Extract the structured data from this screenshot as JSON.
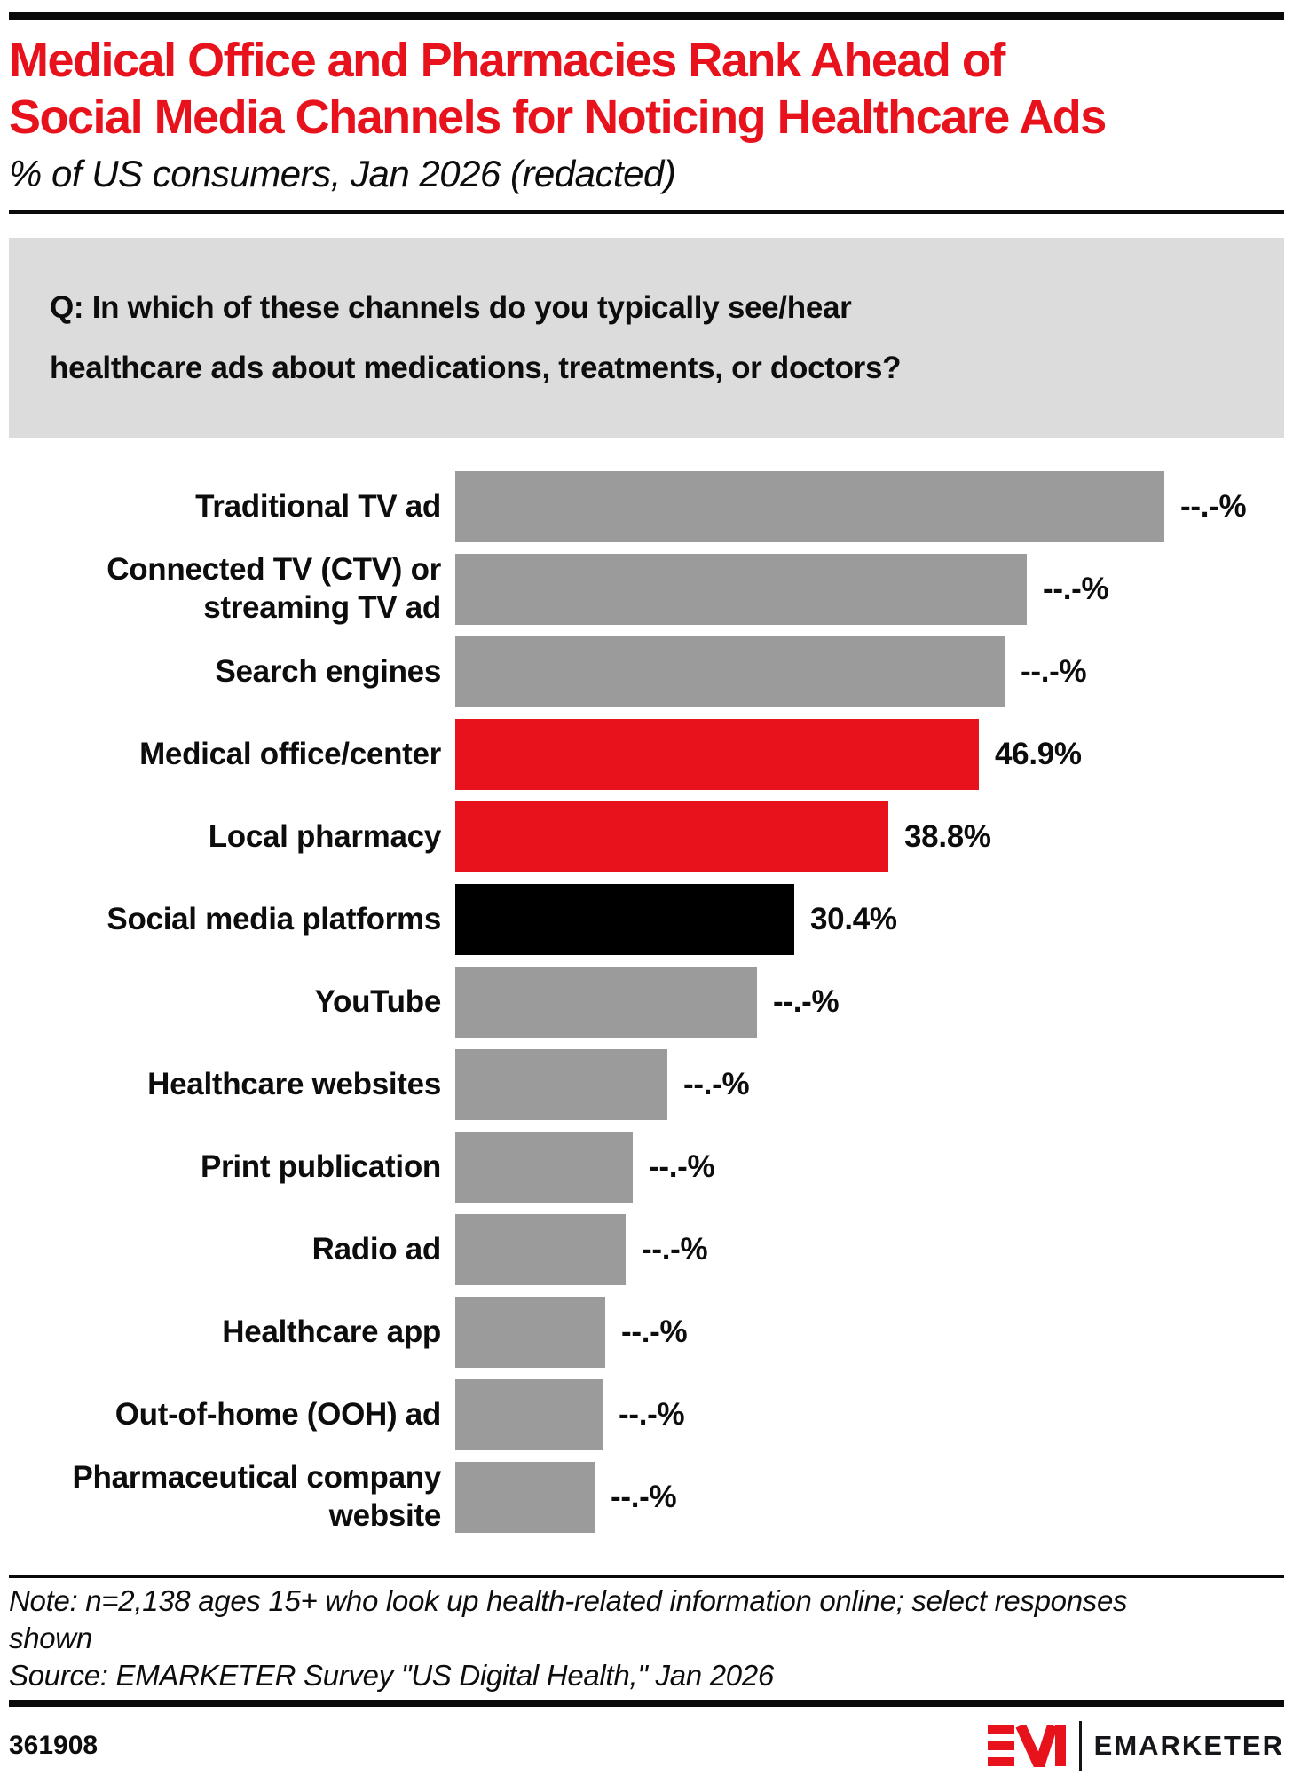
{
  "header": {
    "title_lines": [
      "Medical Office and Pharmacies Rank Ahead of",
      "Social Media Channels for Noticing Healthcare Ads"
    ],
    "subtitle": "% of US consumers, Jan 2026 (redacted)"
  },
  "question": {
    "lines": [
      "Q: In which of these channels do you typically see/hear",
      "healthcare ads about medications, treatments, or doctors?"
    ]
  },
  "chart_data": {
    "type": "bar",
    "orientation": "horizontal",
    "value_unit": "%",
    "title": "Medical Office and Pharmacies Rank Ahead of Social Media Channels for Noticing Healthcare Ads",
    "subtitle": "% of US consumers, Jan 2026 (redacted)",
    "question": "Q: In which of these channels do you typically see/hear healthcare ads about medications, treatments, or doctors?",
    "xlim": [
      0,
      74
    ],
    "grid": false,
    "legend": false,
    "redacted_value_text": "--.-%",
    "categories": [
      "Traditional TV ad",
      "Connected TV (CTV) or streaming TV ad",
      "Search engines",
      "Medical office/center",
      "Local pharmacy",
      "Social media platforms",
      "YouTube",
      "Healthcare websites",
      "Print publication",
      "Radio ad",
      "Healthcare app",
      "Out-of-home (OOH) ad",
      "Pharmaceutical company website"
    ],
    "rows": [
      {
        "label": "Traditional TV ad",
        "label_lines": [
          "Traditional TV ad"
        ],
        "display_value": "--.-%",
        "value": null,
        "est_pct_from_bar_length": 63.5,
        "color": "gray"
      },
      {
        "label": "Connected TV (CTV) or streaming TV ad",
        "label_lines": [
          "Connected TV (CTV) or",
          "streaming TV ad"
        ],
        "display_value": "--.-%",
        "value": null,
        "est_pct_from_bar_length": 51.2,
        "color": "gray"
      },
      {
        "label": "Search engines",
        "label_lines": [
          "Search engines"
        ],
        "display_value": "--.-%",
        "value": null,
        "est_pct_from_bar_length": 49.2,
        "color": "gray"
      },
      {
        "label": "Medical office/center",
        "label_lines": [
          "Medical office/center"
        ],
        "display_value": "46.9%",
        "value": 46.9,
        "est_pct_from_bar_length": 46.9,
        "color": "red"
      },
      {
        "label": "Local pharmacy",
        "label_lines": [
          "Local pharmacy"
        ],
        "display_value": "38.8%",
        "value": 38.8,
        "est_pct_from_bar_length": 38.8,
        "color": "red"
      },
      {
        "label": "Social media platforms",
        "label_lines": [
          "Social media platforms"
        ],
        "display_value": "30.4%",
        "value": 30.4,
        "est_pct_from_bar_length": 30.4,
        "color": "black"
      },
      {
        "label": "YouTube",
        "label_lines": [
          "YouTube"
        ],
        "display_value": "--.-%",
        "value": null,
        "est_pct_from_bar_length": 27.0,
        "color": "gray"
      },
      {
        "label": "Healthcare websites",
        "label_lines": [
          "Healthcare websites"
        ],
        "display_value": "--.-%",
        "value": null,
        "est_pct_from_bar_length": 19.0,
        "color": "gray"
      },
      {
        "label": "Print publication",
        "label_lines": [
          "Print publication"
        ],
        "display_value": "--.-%",
        "value": null,
        "est_pct_from_bar_length": 15.9,
        "color": "gray"
      },
      {
        "label": "Radio ad",
        "label_lines": [
          "Radio ad"
        ],
        "display_value": "--.-%",
        "value": null,
        "est_pct_from_bar_length": 15.3,
        "color": "gray"
      },
      {
        "label": "Healthcare app",
        "label_lines": [
          "Healthcare app"
        ],
        "display_value": "--.-%",
        "value": null,
        "est_pct_from_bar_length": 13.4,
        "color": "gray"
      },
      {
        "label": "Out-of-home (OOH) ad",
        "label_lines": [
          "Out-of-home (OOH) ad"
        ],
        "display_value": "--.-%",
        "value": null,
        "est_pct_from_bar_length": 13.2,
        "color": "gray"
      },
      {
        "label": "Pharmaceutical company website",
        "label_lines": [
          "Pharmaceutical company",
          "website"
        ],
        "display_value": "--.-%",
        "value": null,
        "est_pct_from_bar_length": 12.5,
        "color": "gray"
      }
    ]
  },
  "footnote": {
    "note_lines": [
      "Note: n=2,138 ages 15+ who look up health-related information online; select responses",
      "shown"
    ],
    "source": "Source: EMARKETER Survey \"US Digital Health,\" Jan 2026"
  },
  "footer": {
    "chart_id": "361908",
    "logo_text": "EMARKETER"
  },
  "colors": {
    "accent_red": "#e8121d",
    "bar_gray": "#9b9b9b",
    "bar_black": "#000000",
    "question_bg": "#dcdcdc",
    "rule_black": "#0a0a0a"
  }
}
